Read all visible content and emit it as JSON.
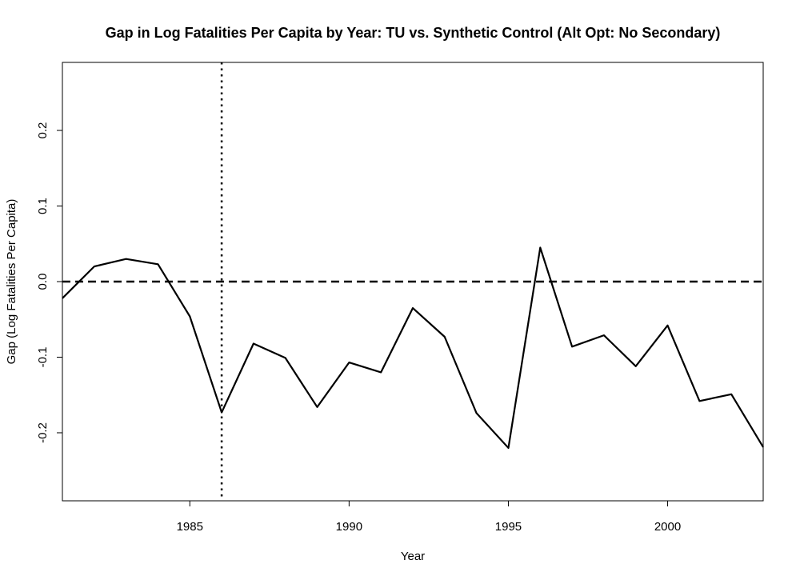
{
  "chart_data": {
    "type": "line",
    "title": "Gap in Log Fatalities Per Capita by Year: TU vs. Synthetic Control (Alt Opt: No Secondary)",
    "xlabel": "Year",
    "ylabel": "Gap (Log Fatalities Per Capita)",
    "xlim": [
      1981,
      2003
    ],
    "ylim": [
      -0.29,
      0.29
    ],
    "x_ticks": [
      1985,
      1990,
      1995,
      2000
    ],
    "x_tick_labels": [
      "1985",
      "1990",
      "1995",
      "2000"
    ],
    "y_ticks": [
      -0.2,
      -0.1,
      0.0,
      0.1,
      0.2
    ],
    "y_tick_labels": [
      "-0.2",
      "-0.1",
      "0.0",
      "0.1",
      "0.2"
    ],
    "grid": false,
    "legend": "none",
    "series": [
      {
        "x": [
          1981,
          1982,
          1983,
          1984,
          1985,
          1986,
          1987,
          1988,
          1989,
          1990,
          1991,
          1992,
          1993,
          1994,
          1995,
          1996,
          1997,
          1998,
          1999,
          2000,
          2001,
          2002,
          2003
        ],
        "values": [
          -0.022,
          0.02,
          0.03,
          0.023,
          -0.046,
          -0.173,
          -0.082,
          -0.101,
          -0.166,
          -0.107,
          -0.12,
          -0.035,
          -0.073,
          -0.174,
          -0.22,
          0.045,
          -0.086,
          -0.071,
          -0.112,
          -0.058,
          -0.158,
          -0.149,
          -0.219
        ]
      }
    ],
    "reference_lines": {
      "horizontal_y": 0.0,
      "horizontal_style": "dashed",
      "vertical_x": 1986,
      "vertical_style": "dotted"
    },
    "colors": {
      "line": "#000000",
      "background": "#ffffff"
    }
  }
}
